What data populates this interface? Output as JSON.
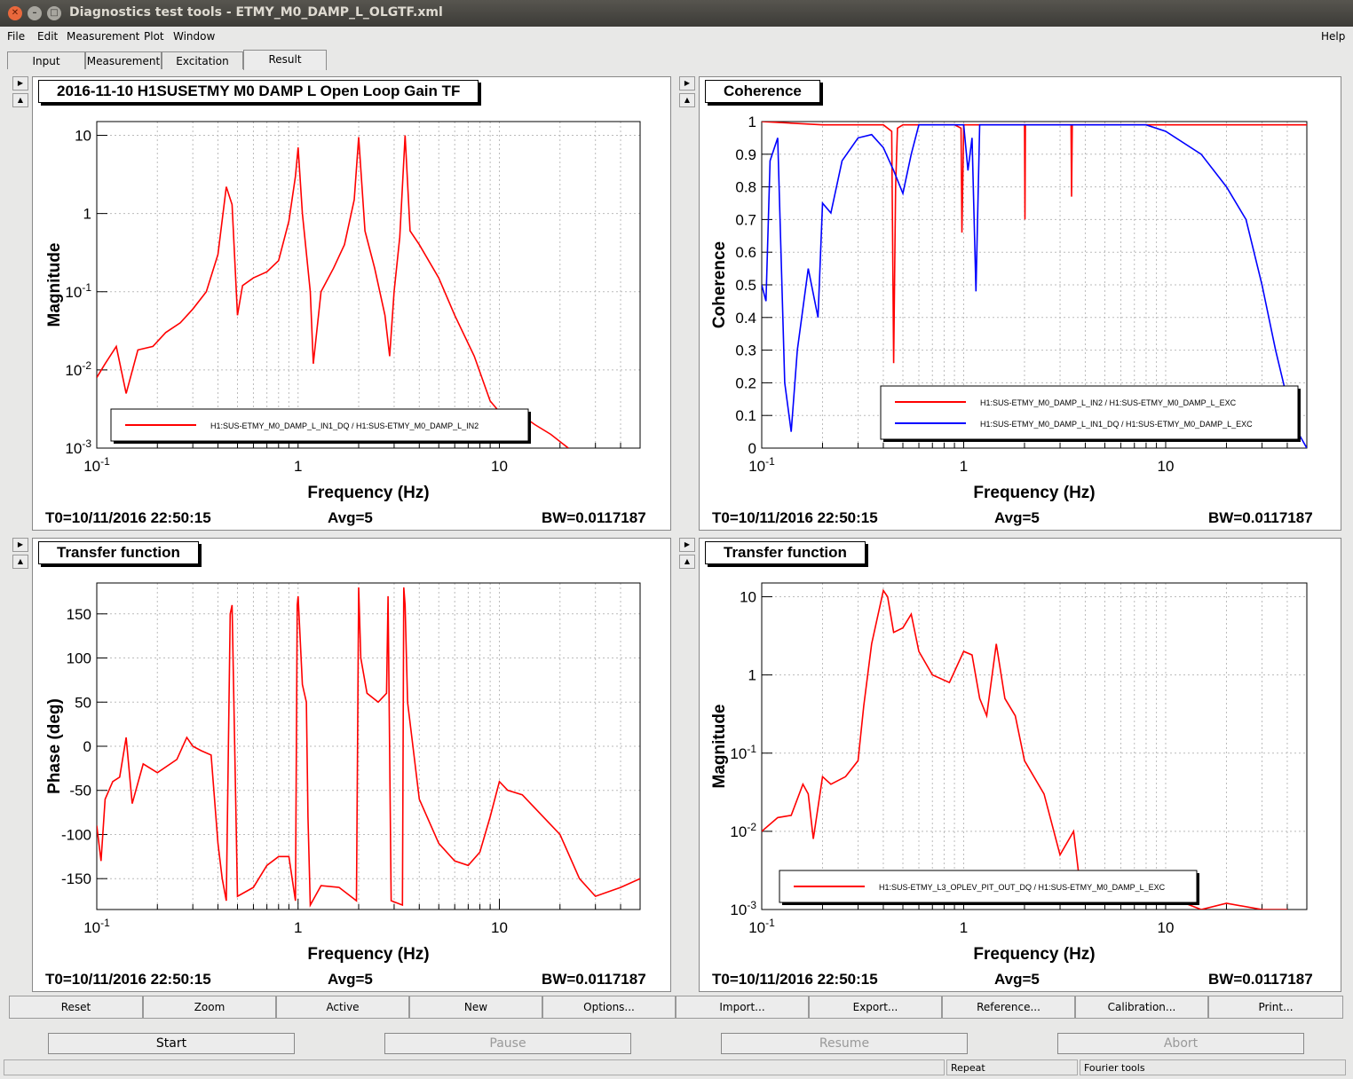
{
  "window": {
    "title": "Diagnostics test tools - ETMY_M0_DAMP_L_OLGTF.xml"
  },
  "menu": [
    "File",
    "Edit",
    "Measurement",
    "Plot",
    "Window"
  ],
  "menu_help": "Help",
  "tabs": [
    "Input",
    "Measurement",
    "Excitation",
    "Result"
  ],
  "active_tab": "Result",
  "pads": [
    {
      "title": "2016-11-10 H1SUSETMY M0 DAMP L Open Loop Gain TF",
      "t0": "T0=10/11/2016 22:50:15",
      "avg": "Avg=5",
      "bw": "BW=0.0117187",
      "xlabel": "Frequency (Hz)",
      "ylabel": "Magnitude",
      "legend": [
        "H1:SUS-ETMY_M0_DAMP_L_IN1_DQ / H1:SUS-ETMY_M0_DAMP_L_IN2"
      ]
    },
    {
      "title": "Coherence",
      "t0": "T0=10/11/2016 22:50:15",
      "avg": "Avg=5",
      "bw": "BW=0.0117187",
      "xlabel": "Frequency (Hz)",
      "ylabel": "Coherence",
      "legend": [
        "H1:SUS-ETMY_M0_DAMP_L_IN2 / H1:SUS-ETMY_M0_DAMP_L_EXC",
        "H1:SUS-ETMY_M0_DAMP_L_IN1_DQ / H1:SUS-ETMY_M0_DAMP_L_EXC"
      ]
    },
    {
      "title": "Transfer function",
      "t0": "T0=10/11/2016 22:50:15",
      "avg": "Avg=5",
      "bw": "BW=0.0117187",
      "xlabel": "Frequency (Hz)",
      "ylabel": "Phase (deg)",
      "legend": []
    },
    {
      "title": "Transfer function",
      "t0": "T0=10/11/2016 22:50:15",
      "avg": "Avg=5",
      "bw": "BW=0.0117187",
      "xlabel": "Frequency (Hz)",
      "ylabel": "Magnitude",
      "legend": [
        "H1:SUS-ETMY_L3_OPLEV_PIT_OUT_DQ / H1:SUS-ETMY_M0_DAMP_L_EXC"
      ]
    }
  ],
  "toolbar": [
    "Reset",
    "Zoom",
    "Active",
    "New",
    "Options...",
    "Import...",
    "Export...",
    "Reference...",
    "Calibration...",
    "Print..."
  ],
  "controls": {
    "start": "Start",
    "pause": "Pause",
    "resume": "Resume",
    "abort": "Abort"
  },
  "status": {
    "repeat": "Repeat",
    "fourier": "Fourier tools"
  },
  "colors": {
    "red": "#ff0000",
    "blue": "#0000ff"
  },
  "chart_data": [
    {
      "type": "line",
      "xscale": "log",
      "yscale": "log",
      "xlim": [
        0.1,
        50
      ],
      "ylim": [
        0.001,
        15
      ],
      "xticks": [
        "10^-1",
        "1",
        "10"
      ],
      "yticks": [
        "10^-3",
        "10^-2",
        "10^-1",
        "1",
        "10"
      ],
      "grid": true,
      "series": [
        {
          "name": "H1:SUS-ETMY_M0_DAMP_L_IN1_DQ / H1:SUS-ETMY_M0_DAMP_L_IN2",
          "color": "#ff0000",
          "x": [
            0.1,
            0.11,
            0.125,
            0.14,
            0.16,
            0.19,
            0.22,
            0.26,
            0.3,
            0.35,
            0.4,
            0.44,
            0.47,
            0.5,
            0.53,
            0.6,
            0.7,
            0.8,
            0.9,
            0.97,
            1.0,
            1.05,
            1.15,
            1.19,
            1.3,
            1.5,
            1.7,
            1.9,
            2.0,
            2.15,
            2.4,
            2.7,
            2.85,
            3.0,
            3.2,
            3.4,
            3.6,
            4.0,
            5.0,
            6.0,
            7.5,
            9.0,
            10.5,
            12,
            15,
            18,
            22
          ],
          "y": [
            0.008,
            0.012,
            0.02,
            0.005,
            0.018,
            0.02,
            0.03,
            0.04,
            0.06,
            0.1,
            0.3,
            2.2,
            1.3,
            0.05,
            0.12,
            0.15,
            0.18,
            0.25,
            0.8,
            3.0,
            7.0,
            1.0,
            0.1,
            0.012,
            0.1,
            0.2,
            0.4,
            1.5,
            9.5,
            0.6,
            0.2,
            0.05,
            0.015,
            0.1,
            0.5,
            10.0,
            0.6,
            0.4,
            0.15,
            0.05,
            0.015,
            0.004,
            0.0025,
            0.003,
            0.002,
            0.0015,
            0.001
          ]
        }
      ]
    },
    {
      "type": "line",
      "xscale": "log",
      "xlim": [
        0.1,
        50
      ],
      "ylim": [
        0,
        1
      ],
      "xticks": [
        "10^-1",
        "1",
        "10"
      ],
      "yticks": [
        "0",
        "0.1",
        "0.2",
        "0.3",
        "0.4",
        "0.5",
        "0.6",
        "0.7",
        "0.8",
        "0.9",
        "1"
      ],
      "grid": true,
      "series": [
        {
          "name": "H1:SUS-ETMY_M0_DAMP_L_IN2 / H1:SUS-ETMY_M0_DAMP_L_EXC",
          "color": "#ff0000",
          "x": [
            0.1,
            0.2,
            0.4,
            0.44,
            0.45,
            0.46,
            0.47,
            0.5,
            0.9,
            0.97,
            0.98,
            1.0,
            1.05,
            1.15,
            1.5,
            2.0,
            2.01,
            2.02,
            2.05,
            3.0,
            3.4,
            3.42,
            3.45,
            4,
            10,
            20,
            50
          ],
          "y": [
            1,
            0.99,
            0.99,
            0.97,
            0.26,
            0.8,
            0.98,
            0.99,
            0.99,
            0.98,
            0.66,
            0.99,
            0.99,
            0.99,
            0.99,
            0.99,
            0.7,
            0.99,
            0.99,
            0.99,
            0.99,
            0.77,
            0.99,
            0.99,
            0.99,
            0.99,
            0.99
          ]
        },
        {
          "name": "H1:SUS-ETMY_M0_DAMP_L_IN1_DQ / H1:SUS-ETMY_M0_DAMP_L_EXC",
          "color": "#0000ff",
          "x": [
            0.1,
            0.105,
            0.11,
            0.12,
            0.13,
            0.14,
            0.15,
            0.17,
            0.19,
            0.2,
            0.22,
            0.25,
            0.3,
            0.35,
            0.4,
            0.45,
            0.5,
            0.55,
            0.6,
            0.8,
            1.0,
            1.05,
            1.1,
            1.15,
            1.2,
            1.5,
            3,
            8,
            10,
            15,
            20,
            25,
            30,
            35,
            40,
            45,
            50
          ],
          "y": [
            0.5,
            0.45,
            0.88,
            0.95,
            0.2,
            0.05,
            0.3,
            0.55,
            0.4,
            0.75,
            0.72,
            0.88,
            0.95,
            0.96,
            0.92,
            0.85,
            0.78,
            0.9,
            0.99,
            0.99,
            0.99,
            0.85,
            0.95,
            0.48,
            0.99,
            0.99,
            0.99,
            0.99,
            0.97,
            0.9,
            0.8,
            0.7,
            0.5,
            0.3,
            0.15,
            0.05,
            0.0
          ]
        }
      ]
    },
    {
      "type": "line",
      "xscale": "log",
      "xlim": [
        0.1,
        50
      ],
      "ylim": [
        -185,
        185
      ],
      "xticks": [
        "10^-1",
        "1",
        "10"
      ],
      "yticks": [
        "-150",
        "-100",
        "-50",
        "0",
        "50",
        "100",
        "150"
      ],
      "grid": true,
      "series": [
        {
          "name": "",
          "color": "#ff0000",
          "x": [
            0.1,
            0.105,
            0.11,
            0.12,
            0.13,
            0.14,
            0.15,
            0.17,
            0.2,
            0.25,
            0.28,
            0.3,
            0.33,
            0.37,
            0.4,
            0.42,
            0.44,
            0.46,
            0.47,
            0.5,
            0.6,
            0.7,
            0.8,
            0.9,
            0.97,
            0.99,
            1.0,
            1.05,
            1.1,
            1.12,
            1.15,
            1.3,
            1.6,
            1.95,
            2.0,
            2.05,
            2.2,
            2.5,
            2.75,
            2.8,
            2.9,
            3.3,
            3.35,
            3.4,
            3.5,
            4,
            5,
            6,
            7,
            8,
            9,
            10,
            11,
            13,
            15,
            20,
            25,
            30,
            40,
            50
          ],
          "y": [
            -90,
            -130,
            -60,
            -40,
            -35,
            10,
            -65,
            -20,
            -30,
            -15,
            10,
            0,
            -5,
            -10,
            -110,
            -150,
            -175,
            150,
            160,
            -170,
            -160,
            -135,
            -125,
            -125,
            -175,
            160,
            170,
            70,
            50,
            -80,
            -180,
            -158,
            -160,
            -175,
            180,
            100,
            60,
            50,
            60,
            170,
            -175,
            -180,
            180,
            160,
            50,
            -60,
            -110,
            -130,
            -135,
            -120,
            -80,
            -40,
            -50,
            -55,
            -70,
            -100,
            -150,
            -170,
            -160,
            -150
          ]
        }
      ]
    },
    {
      "type": "line",
      "xscale": "log",
      "yscale": "log",
      "xlim": [
        0.1,
        50
      ],
      "ylim": [
        0.001,
        15
      ],
      "xticks": [
        "10^-1",
        "1",
        "10"
      ],
      "yticks": [
        "10^-3",
        "10^-2",
        "10^-1",
        "1",
        "10"
      ],
      "grid": true,
      "series": [
        {
          "name": "H1:SUS-ETMY_L3_OPLEV_PIT_OUT_DQ / H1:SUS-ETMY_M0_DAMP_L_EXC",
          "color": "#ff0000",
          "x": [
            0.1,
            0.12,
            0.14,
            0.16,
            0.17,
            0.18,
            0.2,
            0.22,
            0.26,
            0.3,
            0.32,
            0.35,
            0.4,
            0.42,
            0.45,
            0.5,
            0.55,
            0.6,
            0.7,
            0.85,
            1.0,
            1.1,
            1.2,
            1.3,
            1.45,
            1.6,
            1.8,
            2.0,
            2.5,
            3.0,
            3.5,
            3.7,
            4.0,
            4.5,
            6,
            8,
            10,
            15,
            20,
            30,
            40
          ],
          "y": [
            0.01,
            0.015,
            0.016,
            0.04,
            0.03,
            0.008,
            0.05,
            0.04,
            0.05,
            0.08,
            0.4,
            2.5,
            12.0,
            10.0,
            3.5,
            4.0,
            6.0,
            2.0,
            1.0,
            0.8,
            2.0,
            1.8,
            0.5,
            0.3,
            2.5,
            0.5,
            0.3,
            0.08,
            0.03,
            0.005,
            0.01,
            0.003,
            0.0015,
            0.002,
            0.0015,
            0.002,
            0.0015,
            0.001,
            0.0012,
            0.001,
            0.001
          ]
        }
      ]
    }
  ]
}
